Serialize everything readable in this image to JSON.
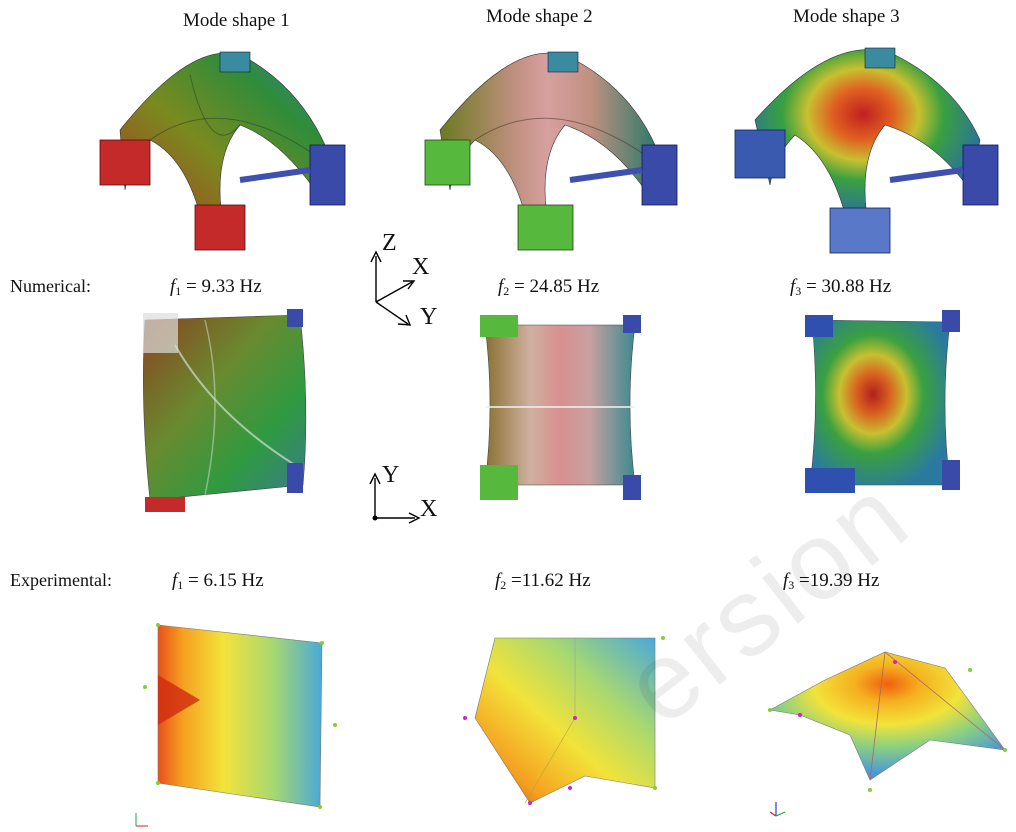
{
  "titles": {
    "mode1": "Mode shape 1",
    "mode2": "Mode shape 2",
    "mode3": "Mode shape 3"
  },
  "rows": {
    "numerical": "Numerical:",
    "experimental": "Experimental:"
  },
  "frequencies": {
    "numerical": [
      {
        "sym": "f",
        "sub": "1",
        "value": " = 9.33 Hz"
      },
      {
        "sym": "f",
        "sub": "2",
        "value": " = 24.85 Hz"
      },
      {
        "sym": "f",
        "sub": "3",
        "value": " = 30.88 Hz"
      }
    ],
    "experimental": [
      {
        "sym": "f",
        "sub": "1",
        "value": " = 6.15 Hz"
      },
      {
        "sym": "f",
        "sub": "2",
        "value": " =11.62 Hz"
      },
      {
        "sym": "f",
        "sub": "3",
        "value": " =19.39 Hz"
      }
    ]
  },
  "axes": {
    "triad3d": {
      "z": "Z",
      "x": "X",
      "y": "Y"
    },
    "triad2d": {
      "y": "Y",
      "x": "X"
    }
  },
  "watermark": "ersion",
  "colors": {
    "red": "#c0392b",
    "green": "#3fa52e",
    "blue": "#3050b0",
    "yellow": "#f2e33a",
    "cyan": "#4aa8d8"
  }
}
